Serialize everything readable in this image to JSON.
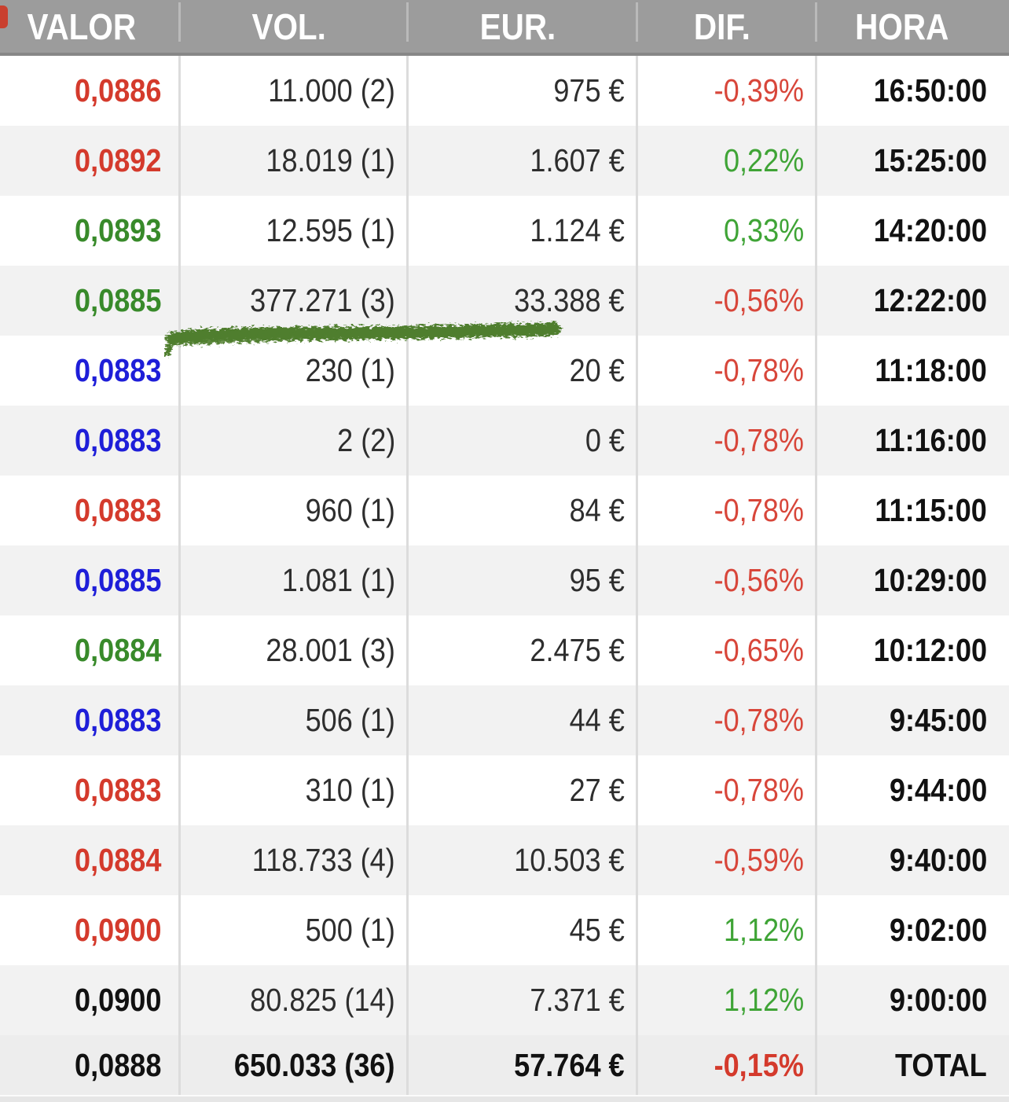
{
  "table": {
    "columns": [
      {
        "key": "valor",
        "label": "VALOR"
      },
      {
        "key": "vol",
        "label": "VOL."
      },
      {
        "key": "eur",
        "label": "EUR."
      },
      {
        "key": "dif",
        "label": "DIF."
      },
      {
        "key": "hora",
        "label": "HORA"
      }
    ],
    "rows": [
      {
        "valor": "0,0886",
        "valor_color": "red",
        "vol": "11.000 (2)",
        "eur": "975 €",
        "dif": "-0,39%",
        "dif_color": "red",
        "hora": "16:50:00"
      },
      {
        "valor": "0,0892",
        "valor_color": "red",
        "vol": "18.019 (1)",
        "eur": "1.607 €",
        "dif": "0,22%",
        "dif_color": "green",
        "hora": "15:25:00"
      },
      {
        "valor": "0,0893",
        "valor_color": "green",
        "vol": "12.595 (1)",
        "eur": "1.124 €",
        "dif": "0,33%",
        "dif_color": "green",
        "hora": "14:20:00"
      },
      {
        "valor": "0,0885",
        "valor_color": "green",
        "vol": "377.271 (3)",
        "eur": "33.388 €",
        "dif": "-0,56%",
        "dif_color": "red",
        "hora": "12:22:00",
        "annotation": "green-marker-underline"
      },
      {
        "valor": "0,0883",
        "valor_color": "blue",
        "vol": "230 (1)",
        "eur": "20 €",
        "dif": "-0,78%",
        "dif_color": "red",
        "hora": "11:18:00"
      },
      {
        "valor": "0,0883",
        "valor_color": "blue",
        "vol": "2 (2)",
        "eur": "0 €",
        "dif": "-0,78%",
        "dif_color": "red",
        "hora": "11:16:00"
      },
      {
        "valor": "0,0883",
        "valor_color": "red",
        "vol": "960 (1)",
        "eur": "84 €",
        "dif": "-0,78%",
        "dif_color": "red",
        "hora": "11:15:00"
      },
      {
        "valor": "0,0885",
        "valor_color": "blue",
        "vol": "1.081 (1)",
        "eur": "95 €",
        "dif": "-0,56%",
        "dif_color": "red",
        "hora": "10:29:00"
      },
      {
        "valor": "0,0884",
        "valor_color": "green",
        "vol": "28.001 (3)",
        "eur": "2.475 €",
        "dif": "-0,65%",
        "dif_color": "red",
        "hora": "10:12:00"
      },
      {
        "valor": "0,0883",
        "valor_color": "blue",
        "vol": "506 (1)",
        "eur": "44 €",
        "dif": "-0,78%",
        "dif_color": "red",
        "hora": "9:45:00"
      },
      {
        "valor": "0,0883",
        "valor_color": "red",
        "vol": "310 (1)",
        "eur": "27 €",
        "dif": "-0,78%",
        "dif_color": "red",
        "hora": "9:44:00"
      },
      {
        "valor": "0,0884",
        "valor_color": "red",
        "vol": "118.733 (4)",
        "eur": "10.503 €",
        "dif": "-0,59%",
        "dif_color": "red",
        "hora": "9:40:00"
      },
      {
        "valor": "0,0900",
        "valor_color": "red",
        "vol": "500 (1)",
        "eur": "45 €",
        "dif": "1,12%",
        "dif_color": "green",
        "hora": "9:02:00"
      },
      {
        "valor": "0,0900",
        "valor_color": "black",
        "vol": "80.825 (14)",
        "eur": "7.371 €",
        "dif": "1,12%",
        "dif_color": "green",
        "hora": "9:00:00"
      }
    ],
    "total_row": {
      "valor": "0,0888",
      "vol": "650.033 (36)",
      "eur": "57.764 €",
      "dif": "-0,15%",
      "dif_color": "red",
      "hora": "TOTAL"
    }
  },
  "colors": {
    "header_bg": "#9c9c9c",
    "header_text": "#ffffff",
    "row_alt_bg": "#f2f2f2",
    "total_row_bg": "#ededed",
    "valor": {
      "red": "#d43a2c",
      "green": "#388a2a",
      "blue": "#1e1ed8",
      "black": "#111111"
    },
    "dif": {
      "red": "#d8463a",
      "green": "#3fa436"
    },
    "annotation_green": "#4f7e2f",
    "left_edge_marker": "#c9402f"
  }
}
